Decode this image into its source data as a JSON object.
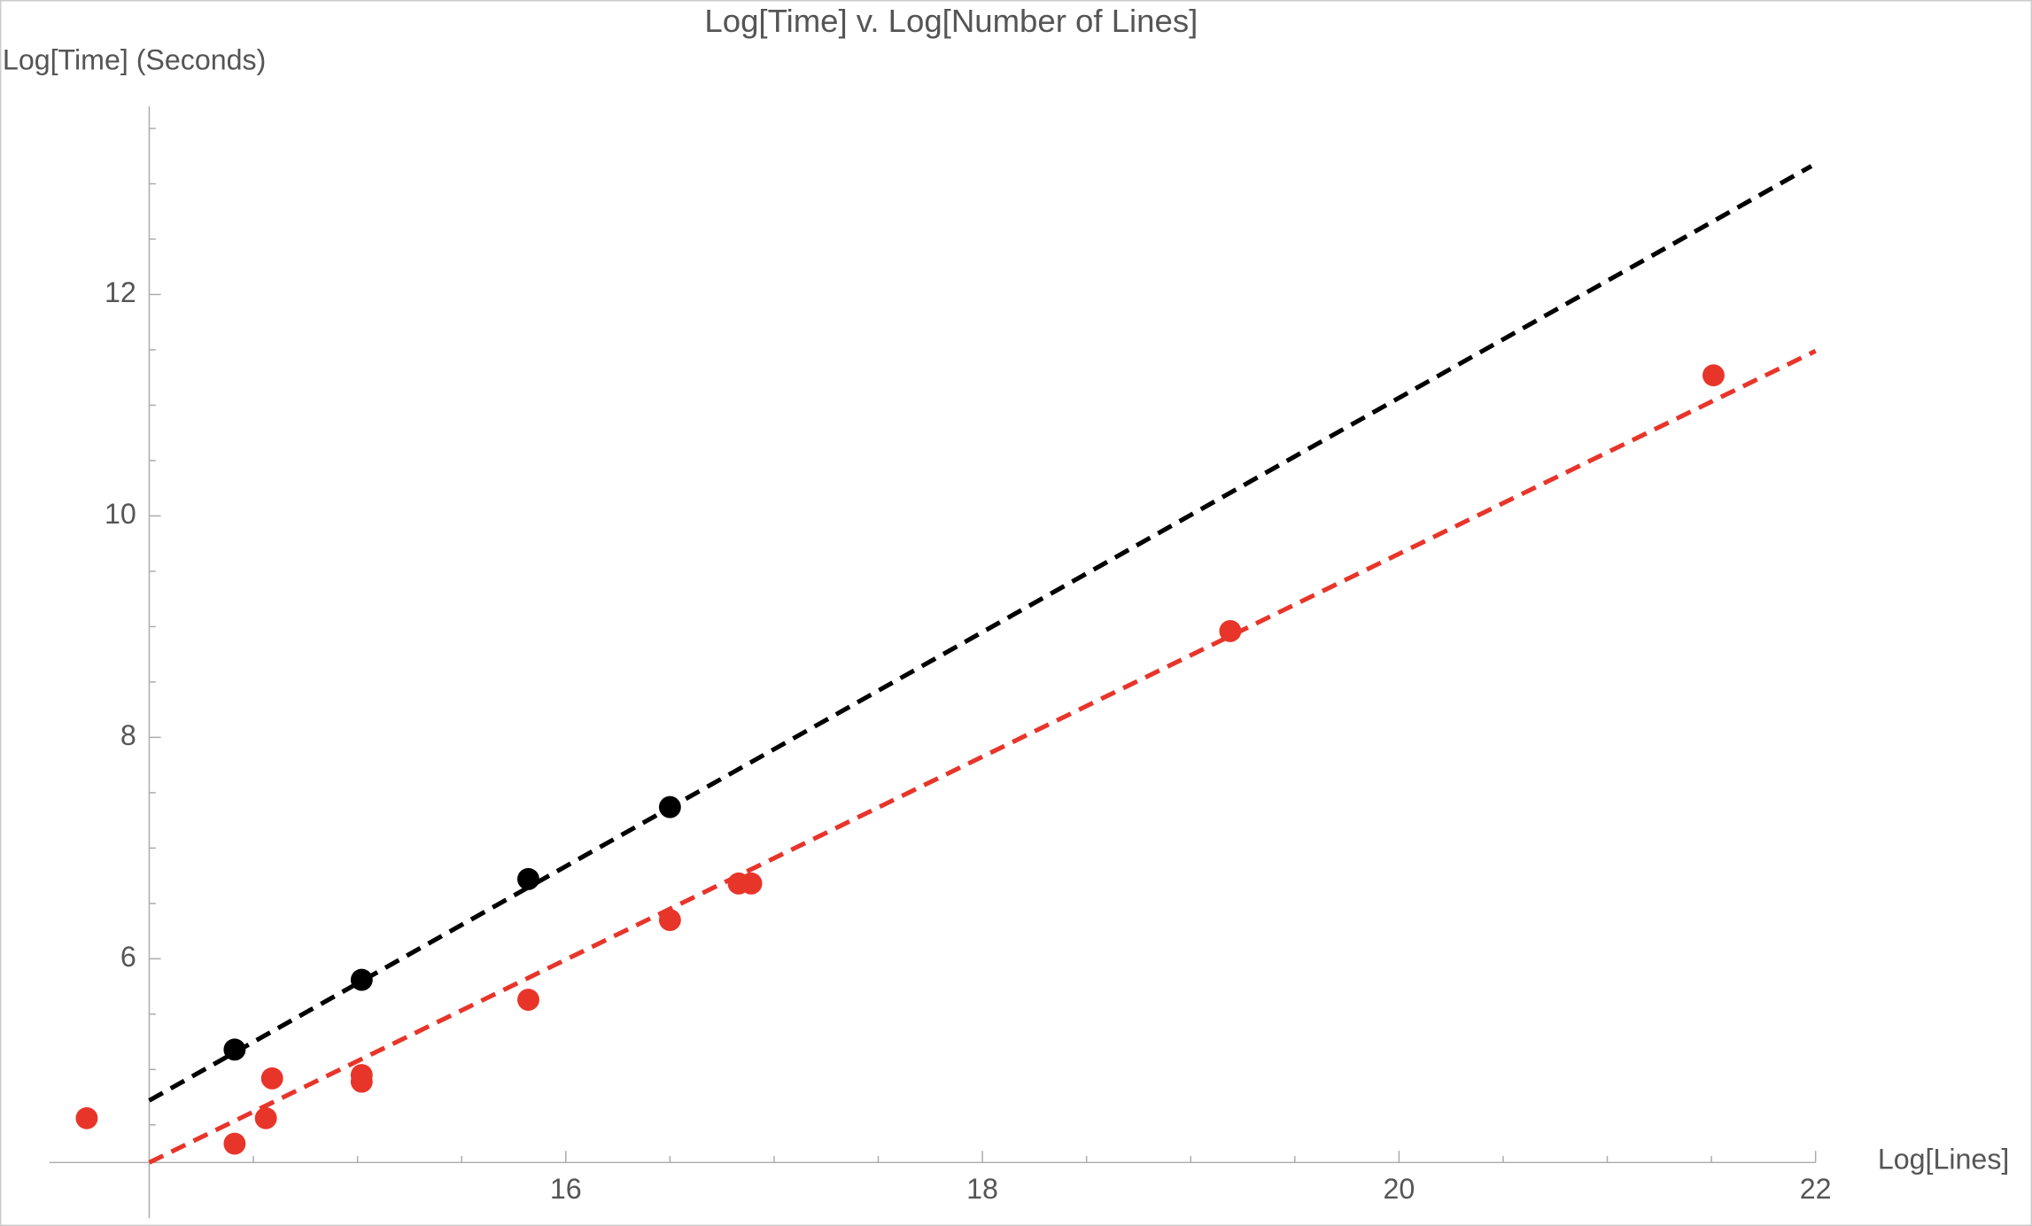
{
  "chart_data": {
    "type": "scatter",
    "title": "Log[Time] v. Log[Number of Lines]",
    "y_label": "Log[Time] (Seconds)",
    "x_label": "Log[Lines]",
    "xlim": [
      13.52,
      22
    ],
    "ylim": [
      4.16,
      13.7
    ],
    "axes_origin": {
      "x": 14,
      "y": 4.16
    },
    "xticks": [
      16,
      18,
      20,
      22
    ],
    "yticks": [
      6,
      8,
      10,
      12
    ],
    "xminorticks": [
      14.5,
      15,
      15.5,
      16.5,
      17,
      17.5,
      18.5,
      19,
      19.5,
      20.5,
      21,
      21.5
    ],
    "yminorticks": [
      4.5,
      5,
      5.5,
      6.5,
      7,
      7.5,
      8.5,
      9,
      9.5,
      10.5,
      11,
      11.5,
      12.5,
      13,
      13.5
    ],
    "series": [
      {
        "color": "#000000",
        "x": [
          14.41,
          15.02,
          15.82,
          16.5
        ],
        "values": [
          5.18,
          5.81,
          6.72,
          7.37
        ]
      },
      {
        "color": "#e8352a",
        "x": [
          13.7,
          14.41,
          14.56,
          14.59,
          15.02,
          15.02,
          15.82,
          16.5,
          16.83,
          16.89,
          19.19,
          21.51
        ],
        "values": [
          4.56,
          4.33,
          4.56,
          4.92,
          4.95,
          4.89,
          5.63,
          6.35,
          6.68,
          6.68,
          8.96,
          11.27
        ]
      }
    ],
    "fits": [
      {
        "color": "#000000",
        "x": [
          14,
          21.98
        ],
        "values": [
          4.72,
          13.16
        ]
      },
      {
        "color": "#e8352a",
        "x": [
          14,
          22
        ],
        "values": [
          4.16,
          11.49
        ]
      }
    ]
  }
}
